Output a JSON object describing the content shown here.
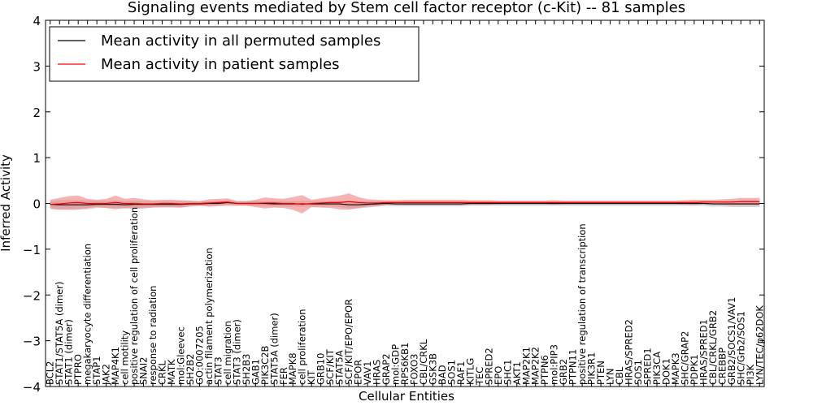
{
  "chart_data": {
    "type": "line",
    "title": "Signaling events mediated by Stem cell factor receptor (c-Kit) -- 81 samples",
    "xlabel": "Cellular Entities",
    "ylabel": "Inferred Activity",
    "ylim": [
      -4,
      4
    ],
    "yticks": [
      -4,
      -3,
      -2,
      -1,
      0,
      1,
      2,
      3,
      4
    ],
    "ytick_labels": [
      "−4",
      "−3",
      "−2",
      "−1",
      "0",
      "1",
      "2",
      "3",
      "4"
    ],
    "legend_position": "top-left",
    "categories": [
      "BCL2",
      "STAT1/STAT5A (dimer)",
      "STAT1 (dimer)",
      "PTPRO",
      "megakaryocyte differentiation",
      "STAP1",
      "JAK2",
      "MAP4K1",
      "cell motility",
      "positive regulation of cell proliferation",
      "SNAI2",
      "response to radiation",
      "CRKL",
      "MATK",
      "mol:Gleevec",
      "SH2B2",
      "GO:0007205",
      "actin filament polymerization",
      "STAT3",
      "cell migration",
      "STAT3 (dimer)",
      "SH2B3",
      "GAB1",
      "PIK3C2B",
      "STAT5A (dimer)",
      "FER",
      "MAPK8",
      "cell proliferation",
      "KIT",
      "GRB10",
      "SCF/KIT",
      "STAT5A",
      "SCF/KIT/EPO/EPOR",
      "EPOR",
      "VAV1",
      "HRAS",
      "GRAP2",
      "mol:GDP",
      "RPS6KB1",
      "FOXO3",
      "CBL/CRKL",
      "GSK3B",
      "BAD",
      "SOS1",
      "RAF1",
      "KITLG",
      "TEC",
      "SPRED2",
      "EPO",
      "SHC1",
      "AKT1",
      "MAP2K1",
      "MAP2K2",
      "PTPN6",
      "mol:PIP3",
      "GRB2",
      "PTPN11",
      "positive regulation of transcription",
      "PIK3R1",
      "PTEN",
      "LYN",
      "CBL",
      "HRAS/SPRED2",
      "SOS1",
      "SPRED1",
      "PIK3CA",
      "DOK1",
      "MAPK3",
      "SHC/GRAP2",
      "PDPK1",
      "HRAS/SPRED1",
      "CBL/CRKL/GRB2",
      "CREBBP",
      "GRB2/SOCS1/VAV1",
      "SHC/Grb2/SOS1",
      "PI3K",
      "LYN/TEC/p62DOK"
    ],
    "series": [
      {
        "name": "Mean activity in all permuted samples",
        "color": "#000000",
        "band_color": "#b4b4b4",
        "values": [
          -0.02,
          -0.03,
          -0.03,
          -0.03,
          -0.03,
          -0.02,
          -0.02,
          -0.02,
          -0.03,
          -0.02,
          -0.02,
          -0.02,
          -0.02,
          -0.02,
          -0.02,
          -0.01,
          -0.01,
          0.0,
          0.0,
          0.02,
          0.0,
          0.0,
          0.0,
          0.0,
          -0.01,
          -0.01,
          -0.01,
          -0.01,
          -0.01,
          -0.01,
          -0.01,
          -0.01,
          -0.03,
          -0.03,
          -0.02,
          -0.01,
          0.0,
          -0.01,
          -0.01,
          -0.01,
          -0.01,
          -0.01,
          -0.01,
          -0.01,
          -0.01,
          0.0,
          0.0,
          0.0,
          0.0,
          0.0,
          0.0,
          0.0,
          0.0,
          0.0,
          0.0,
          0.0,
          0.0,
          0.0,
          0.0,
          0.0,
          0.0,
          0.0,
          0.0,
          0.0,
          0.0,
          0.0,
          0.0,
          0.0,
          0.0,
          0.0,
          0.0,
          -0.01,
          -0.01,
          -0.01,
          -0.01,
          -0.01,
          -0.01
        ],
        "band": [
          0.08,
          0.1,
          0.1,
          0.1,
          0.1,
          0.08,
          0.08,
          0.08,
          0.08,
          0.08,
          0.07,
          0.07,
          0.07,
          0.07,
          0.07,
          0.06,
          0.05,
          0.05,
          0.05,
          0.05,
          0.05,
          0.05,
          0.05,
          0.05,
          0.06,
          0.06,
          0.06,
          0.06,
          0.06,
          0.06,
          0.06,
          0.07,
          0.08,
          0.08,
          0.07,
          0.06,
          0.05,
          0.05,
          0.05,
          0.05,
          0.05,
          0.05,
          0.05,
          0.05,
          0.05,
          0.05,
          0.05,
          0.05,
          0.05,
          0.05,
          0.05,
          0.05,
          0.05,
          0.05,
          0.05,
          0.05,
          0.05,
          0.05,
          0.05,
          0.05,
          0.05,
          0.05,
          0.05,
          0.05,
          0.05,
          0.05,
          0.05,
          0.05,
          0.05,
          0.05,
          0.05,
          0.06,
          0.06,
          0.07,
          0.07,
          0.07,
          0.07
        ]
      },
      {
        "name": "Mean activity in patient samples",
        "color": "#ff0000",
        "band_color": "#f08080",
        "values": [
          -0.02,
          -0.01,
          0.01,
          0.02,
          0.0,
          0.0,
          0.0,
          0.02,
          0.0,
          0.0,
          -0.01,
          -0.01,
          0.0,
          0.0,
          -0.01,
          0.0,
          0.0,
          0.01,
          0.02,
          0.03,
          0.0,
          0.0,
          0.0,
          0.01,
          0.01,
          0.0,
          0.0,
          -0.02,
          0.0,
          0.01,
          0.02,
          0.02,
          0.04,
          0.02,
          0.01,
          0.01,
          0.02,
          0.02,
          0.02,
          0.02,
          0.02,
          0.02,
          0.02,
          0.02,
          0.02,
          0.02,
          0.02,
          0.02,
          0.02,
          0.02,
          0.02,
          0.02,
          0.02,
          0.02,
          0.02,
          0.02,
          0.02,
          0.02,
          0.02,
          0.02,
          0.02,
          0.02,
          0.02,
          0.02,
          0.02,
          0.02,
          0.02,
          0.02,
          0.02,
          0.02,
          0.03,
          0.03,
          0.03,
          0.03,
          0.04,
          0.04,
          0.04
        ],
        "band": [
          0.1,
          0.13,
          0.15,
          0.15,
          0.1,
          0.08,
          0.1,
          0.15,
          0.1,
          0.12,
          0.1,
          0.08,
          0.08,
          0.08,
          0.08,
          0.06,
          0.05,
          0.08,
          0.08,
          0.08,
          0.05,
          0.05,
          0.08,
          0.12,
          0.1,
          0.1,
          0.14,
          0.2,
          0.08,
          0.1,
          0.12,
          0.15,
          0.18,
          0.12,
          0.08,
          0.07,
          0.05,
          0.05,
          0.06,
          0.06,
          0.06,
          0.06,
          0.06,
          0.06,
          0.06,
          0.05,
          0.05,
          0.05,
          0.04,
          0.04,
          0.04,
          0.04,
          0.04,
          0.04,
          0.05,
          0.04,
          0.04,
          0.04,
          0.04,
          0.04,
          0.04,
          0.04,
          0.04,
          0.04,
          0.04,
          0.04,
          0.04,
          0.04,
          0.05,
          0.06,
          0.05,
          0.05,
          0.06,
          0.07,
          0.08,
          0.08,
          0.08
        ]
      }
    ]
  }
}
